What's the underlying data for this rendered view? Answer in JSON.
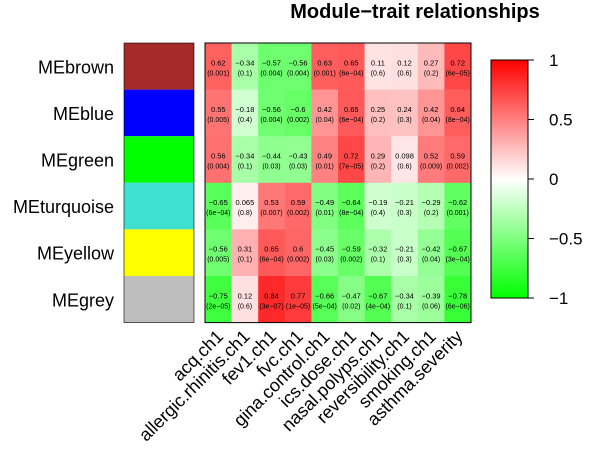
{
  "chart_data": {
    "type": "heatmap",
    "title": "Module−trait relationships",
    "rows": [
      "MEbrown",
      "MEblue",
      "MEgreen",
      "MEturquoise",
      "MEyellow",
      "MEgrey"
    ],
    "row_colors": [
      "#a52a2a",
      "#0000ff",
      "#00ff00",
      "#40e0d0",
      "#ffff00",
      "#bebebe"
    ],
    "columns": [
      "acq.ch1",
      "allergic.rhinitis.ch1",
      "fev1.ch1",
      "fvc.ch1",
      "gina.control.ch1",
      "ics.dose.ch1",
      "nasal.polyps.ch1",
      "reversibility.ch1",
      "smoking.ch1",
      "asthma.severity"
    ],
    "correlations": [
      [
        0.62,
        -0.34,
        -0.57,
        -0.56,
        0.63,
        0.65,
        0.11,
        0.12,
        0.27,
        0.72
      ],
      [
        0.55,
        -0.18,
        -0.56,
        -0.6,
        0.42,
        0.65,
        0.25,
        0.24,
        0.42,
        0.64
      ],
      [
        0.56,
        -0.34,
        -0.44,
        -0.43,
        0.49,
        0.72,
        0.29,
        0.098,
        0.52,
        0.59
      ],
      [
        -0.65,
        0.065,
        0.53,
        0.59,
        -0.49,
        -0.64,
        -0.19,
        -0.21,
        -0.29,
        -0.62
      ],
      [
        -0.56,
        0.31,
        0.65,
        0.6,
        -0.45,
        -0.59,
        -0.32,
        -0.21,
        -0.42,
        -0.67
      ],
      [
        -0.75,
        0.12,
        0.84,
        0.77,
        -0.66,
        -0.47,
        -0.67,
        -0.34,
        -0.39,
        -0.78
      ]
    ],
    "cell_labels": [
      [
        "0.62",
        "−0.34",
        "−0.57",
        "−0.56",
        "0.63",
        "0.65",
        "0.11",
        "0.12",
        "0.27",
        "0.72"
      ],
      [
        "0.55",
        "−0.18",
        "−0.56",
        "−0.6",
        "0.42",
        "0.65",
        "0.25",
        "0.24",
        "0.42",
        "0.64"
      ],
      [
        "0.56",
        "−0.34",
        "−0.44",
        "−0.43",
        "0.49",
        "0.72",
        "0.29",
        "0.098",
        "0.52",
        "0.59"
      ],
      [
        "−0.65",
        "0.065",
        "0.53",
        "0.59",
        "−0.49",
        "−0.64",
        "−0.19",
        "−0.21",
        "−0.29",
        "−0.62"
      ],
      [
        "−0.56",
        "0.31",
        "0.65",
        "0.6",
        "−0.45",
        "−0.59",
        "−0.32",
        "−0.21",
        "−0.42",
        "−0.67"
      ],
      [
        "−0.75",
        "0.12",
        "0.84",
        "0.77",
        "−0.66",
        "−0.47",
        "−0.67",
        "−0.34",
        "−0.39",
        "−0.78"
      ]
    ],
    "pvalues": [
      [
        "(0.001)",
        "(0.1)",
        "(0.004)",
        "(0.004)",
        "(0.001)",
        "(6e−04)",
        "(0.6)",
        "(0.6)",
        "(0.2)",
        "(6e−05)"
      ],
      [
        "(0.005)",
        "(0.4)",
        "(0.004)",
        "(0.002)",
        "(0.04)",
        "(6e−04)",
        "(0.2)",
        "(0.3)",
        "(0.04)",
        "(8e−04)"
      ],
      [
        "(0.004)",
        "(0.1)",
        "(0.03)",
        "(0.03)",
        "(0.01)",
        "(7e−05)",
        "(0.2)",
        "(0.6)",
        "(0.009)",
        "(0.002)"
      ],
      [
        "(6e−04)",
        "(0.8)",
        "(0.007)",
        "(0.002)",
        "(0.01)",
        "(8e−04)",
        "(0.4)",
        "(0.3)",
        "(0.2)",
        "(0.001)"
      ],
      [
        "(0.005)",
        "(0.1)",
        "(6e−04)",
        "(0.002)",
        "(0.03)",
        "(0.002)",
        "(0.1)",
        "(0.3)",
        "(0.04)",
        "(3e−04)"
      ],
      [
        "(2e−05)",
        "(0.6)",
        "(3e−07)",
        "(1e−05)",
        "(5e−04)",
        "(0.02)",
        "(4e−04)",
        "(0.1)",
        "(0.06)",
        "(6e−06)"
      ]
    ],
    "color_scale": {
      "min": -1,
      "max": 1,
      "low_color": "#00ff00",
      "mid_color": "#ffffff",
      "high_color": "#ff0000"
    },
    "legend": {
      "position": "right",
      "ticks": [
        1,
        0.5,
        0,
        -0.5,
        -1
      ],
      "tick_labels": [
        "1",
        "0.5",
        "0",
        "−0.5",
        "−1"
      ]
    }
  }
}
